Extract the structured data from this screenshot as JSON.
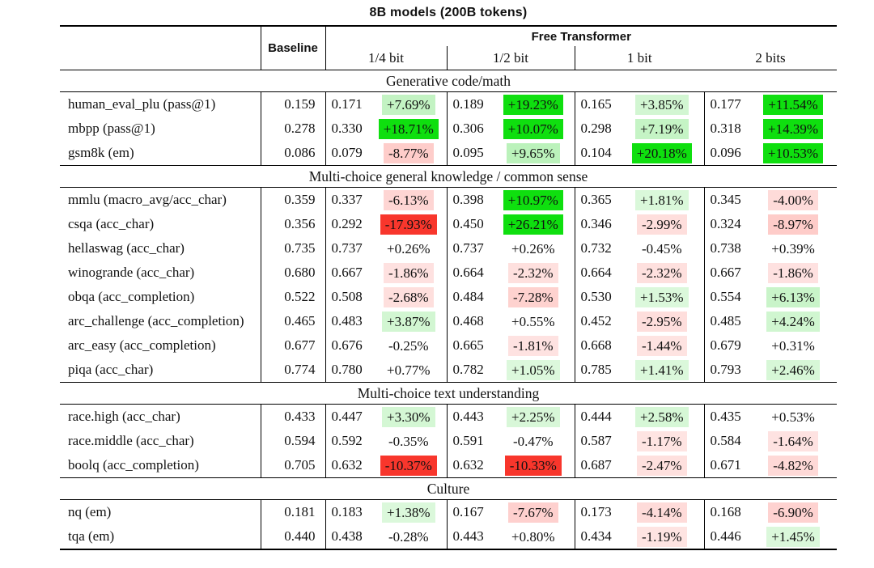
{
  "title": "8B models (200B tokens)",
  "header": {
    "baseline_label": "Baseline",
    "group_label": "Free Transformer",
    "columns": [
      "1/4 bit",
      "1/2 bit",
      "1 bit",
      "2 bits"
    ]
  },
  "colors": {
    "strong_green": "#0fdf0f",
    "strong_red": "#f8362c",
    "green_rgb": "0,205,0",
    "red_rgb": "250,55,45",
    "rule_black": "#000000"
  },
  "color_rule": {
    "no_tint_below_abs_pct": 1,
    "strong_at_abs_pct": 10
  },
  "sections": [
    {
      "label": "Generative code/math",
      "rows": [
        {
          "name": "human_eval_plu (pass@1)",
          "baseline": "0.159",
          "cells": [
            [
              "0.171",
              "+7.69%"
            ],
            [
              "0.189",
              "+19.23%"
            ],
            [
              "0.165",
              "+3.85%"
            ],
            [
              "0.177",
              "+11.54%"
            ]
          ]
        },
        {
          "name": "mbpp (pass@1)",
          "baseline": "0.278",
          "cells": [
            [
              "0.330",
              "+18.71%"
            ],
            [
              "0.306",
              "+10.07%"
            ],
            [
              "0.298",
              "+7.19%"
            ],
            [
              "0.318",
              "+14.39%"
            ]
          ]
        },
        {
          "name": "gsm8k (em)",
          "baseline": "0.086",
          "cells": [
            [
              "0.079",
              "-8.77%"
            ],
            [
              "0.095",
              "+9.65%"
            ],
            [
              "0.104",
              "+20.18%"
            ],
            [
              "0.096",
              "+10.53%"
            ]
          ]
        }
      ]
    },
    {
      "label": "Multi-choice general knowledge / common sense",
      "rows": [
        {
          "name": "mmlu (macro_avg/acc_char)",
          "baseline": "0.359",
          "cells": [
            [
              "0.337",
              "-6.13%"
            ],
            [
              "0.398",
              "+10.97%"
            ],
            [
              "0.365",
              "+1.81%"
            ],
            [
              "0.345",
              "-4.00%"
            ]
          ]
        },
        {
          "name": "csqa (acc_char)",
          "baseline": "0.356",
          "cells": [
            [
              "0.292",
              "-17.93%"
            ],
            [
              "0.450",
              "+26.21%"
            ],
            [
              "0.346",
              "-2.99%"
            ],
            [
              "0.324",
              "-8.97%"
            ]
          ]
        },
        {
          "name": "hellaswag (acc_char)",
          "baseline": "0.735",
          "cells": [
            [
              "0.737",
              "+0.26%"
            ],
            [
              "0.737",
              "+0.26%"
            ],
            [
              "0.732",
              "-0.45%"
            ],
            [
              "0.738",
              "+0.39%"
            ]
          ]
        },
        {
          "name": "winogrande (acc_char)",
          "baseline": "0.680",
          "cells": [
            [
              "0.667",
              "-1.86%"
            ],
            [
              "0.664",
              "-2.32%"
            ],
            [
              "0.664",
              "-2.32%"
            ],
            [
              "0.667",
              "-1.86%"
            ]
          ]
        },
        {
          "name": "obqa (acc_completion)",
          "baseline": "0.522",
          "cells": [
            [
              "0.508",
              "-2.68%"
            ],
            [
              "0.484",
              "-7.28%"
            ],
            [
              "0.530",
              "+1.53%"
            ],
            [
              "0.554",
              "+6.13%"
            ]
          ]
        },
        {
          "name": "arc_challenge (acc_completion)",
          "baseline": "0.465",
          "cells": [
            [
              "0.483",
              "+3.87%"
            ],
            [
              "0.468",
              "+0.55%"
            ],
            [
              "0.452",
              "-2.95%"
            ],
            [
              "0.485",
              "+4.24%"
            ]
          ]
        },
        {
          "name": "arc_easy (acc_completion)",
          "baseline": "0.677",
          "cells": [
            [
              "0.676",
              "-0.25%"
            ],
            [
              "0.665",
              "-1.81%"
            ],
            [
              "0.668",
              "-1.44%"
            ],
            [
              "0.679",
              "+0.31%"
            ]
          ]
        },
        {
          "name": "piqa (acc_char)",
          "baseline": "0.774",
          "cells": [
            [
              "0.780",
              "+0.77%"
            ],
            [
              "0.782",
              "+1.05%"
            ],
            [
              "0.785",
              "+1.41%"
            ],
            [
              "0.793",
              "+2.46%"
            ]
          ]
        }
      ]
    },
    {
      "label": "Multi-choice text understanding",
      "rows": [
        {
          "name": "race.high (acc_char)",
          "baseline": "0.433",
          "cells": [
            [
              "0.447",
              "+3.30%"
            ],
            [
              "0.443",
              "+2.25%"
            ],
            [
              "0.444",
              "+2.58%"
            ],
            [
              "0.435",
              "+0.53%"
            ]
          ]
        },
        {
          "name": "race.middle (acc_char)",
          "baseline": "0.594",
          "cells": [
            [
              "0.592",
              "-0.35%"
            ],
            [
              "0.591",
              "-0.47%"
            ],
            [
              "0.587",
              "-1.17%"
            ],
            [
              "0.584",
              "-1.64%"
            ]
          ]
        },
        {
          "name": "boolq (acc_completion)",
          "baseline": "0.705",
          "cells": [
            [
              "0.632",
              "-10.37%"
            ],
            [
              "0.632",
              "-10.33%"
            ],
            [
              "0.687",
              "-2.47%"
            ],
            [
              "0.671",
              "-4.82%"
            ]
          ]
        }
      ]
    },
    {
      "label": "Culture",
      "rows": [
        {
          "name": "nq (em)",
          "baseline": "0.181",
          "cells": [
            [
              "0.183",
              "+1.38%"
            ],
            [
              "0.167",
              "-7.67%"
            ],
            [
              "0.173",
              "-4.14%"
            ],
            [
              "0.168",
              "-6.90%"
            ]
          ]
        },
        {
          "name": "tqa (em)",
          "baseline": "0.440",
          "cells": [
            [
              "0.438",
              "-0.28%"
            ],
            [
              "0.443",
              "+0.80%"
            ],
            [
              "0.434",
              "-1.19%"
            ],
            [
              "0.446",
              "+1.45%"
            ]
          ]
        }
      ]
    }
  ]
}
